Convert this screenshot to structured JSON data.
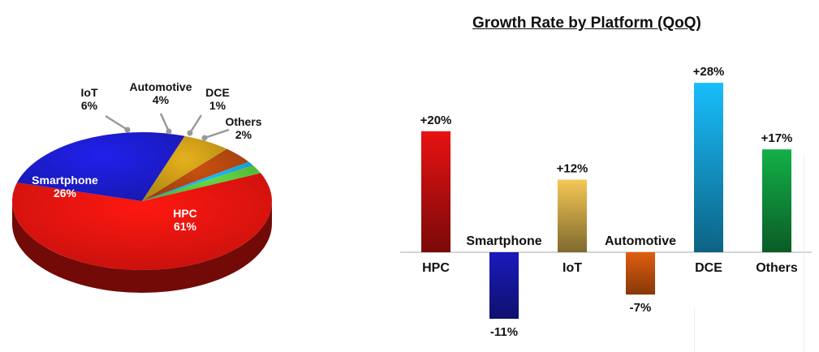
{
  "chart_data": [
    {
      "type": "pie",
      "categories": [
        "HPC",
        "Smartphone",
        "IoT",
        "Automotive",
        "DCE",
        "Others"
      ],
      "values": [
        61,
        26,
        6,
        4,
        1,
        2
      ],
      "value_labels": [
        "61%",
        "26%",
        "6%",
        "4%",
        "1%",
        "2%"
      ],
      "colors": [
        "#e4140f",
        "#1c1ccc",
        "#c89a18",
        "#b0460f",
        "#1aa8e8",
        "#58c43a"
      ],
      "title": ""
    },
    {
      "type": "bar",
      "title": "Growth Rate by Platform (QoQ)",
      "categories": [
        "HPC",
        "Smartphone",
        "IoT",
        "Automotive",
        "DCE",
        "Others"
      ],
      "values": [
        20,
        -11,
        12,
        -7,
        28,
        17
      ],
      "value_labels": [
        "+20%",
        "-11%",
        "+12%",
        "-7%",
        "+28%",
        "+17%"
      ],
      "colors": [
        "#dd1111",
        "#1a1abb",
        "#e8be52",
        "#e05e10",
        "#18b4f0",
        "#13a845"
      ],
      "ylim": [
        -12,
        30
      ],
      "xlabel": "",
      "ylabel": "",
      "grid": false
    }
  ]
}
